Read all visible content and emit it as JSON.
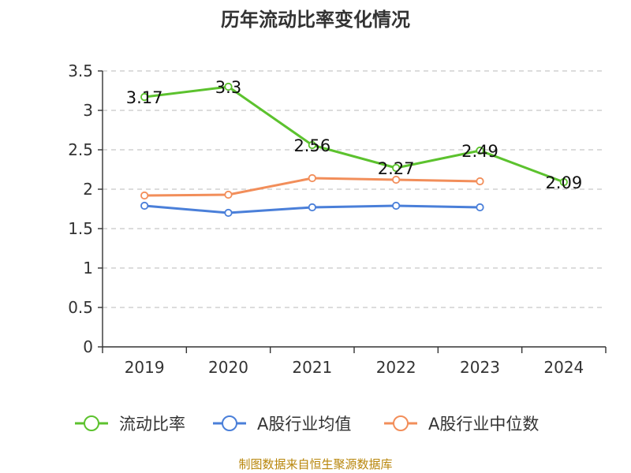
{
  "chart_data": {
    "type": "line",
    "title": "历年流动比率变化情况",
    "categories": [
      "2019",
      "2020",
      "2021",
      "2022",
      "2023",
      "2024"
    ],
    "ylim": [
      0,
      3.5
    ],
    "yticks": [
      "0",
      "0.5",
      "1",
      "1.5",
      "2",
      "2.5",
      "3",
      "3.5"
    ],
    "grid": true,
    "legend_position": "bottom",
    "series": [
      {
        "name": "流动比率",
        "color": "#5cc22e",
        "values": [
          3.17,
          3.3,
          2.56,
          2.27,
          2.49,
          2.09
        ],
        "labels": [
          "3.17",
          "3.3",
          "2.56",
          "2.27",
          "2.49",
          "2.09"
        ]
      },
      {
        "name": "A股行业均值",
        "color": "#4a7fd9",
        "values": [
          1.79,
          1.7,
          1.77,
          1.79,
          1.77,
          null
        ]
      },
      {
        "name": "A股行业中位数",
        "color": "#f28e5a",
        "values": [
          1.92,
          1.93,
          2.14,
          2.12,
          2.1,
          null
        ]
      }
    ]
  },
  "source": "制图数据来自恒生聚源数据库"
}
